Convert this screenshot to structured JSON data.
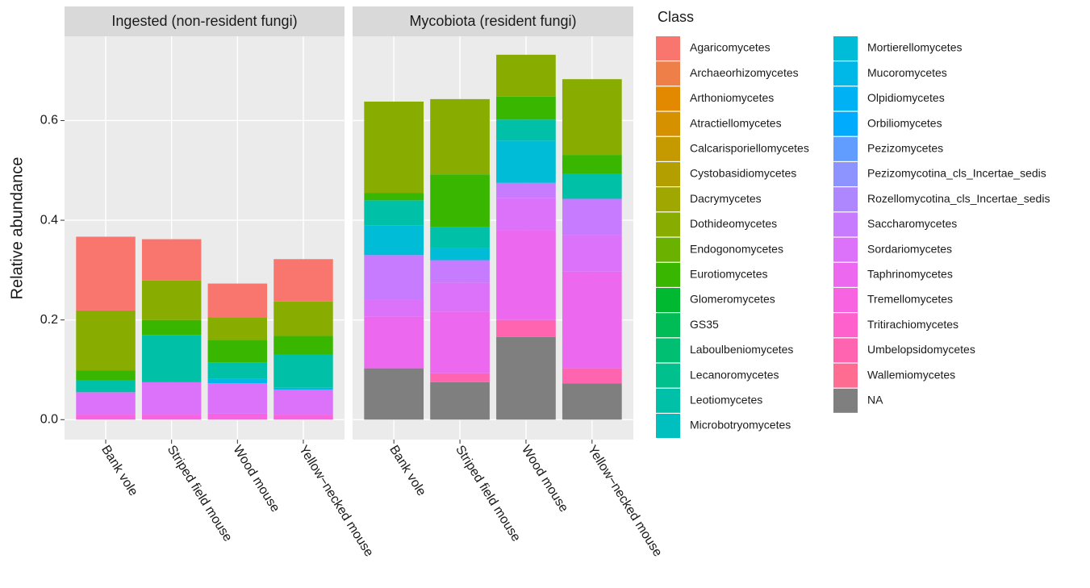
{
  "chart_data": {
    "type": "bar",
    "stacked": true,
    "ylabel": "Relative abundance",
    "legend_title": "Class",
    "facets": [
      "Ingested (non-resident fungi)",
      "Mycobiota (resident fungi)"
    ],
    "categories": [
      "Bank vole",
      "Striped field mouse",
      "Wood mouse",
      "Yellow−necked mouse"
    ],
    "ylim": [
      -0.04,
      0.769
    ],
    "yticks": [
      {
        "value": 0,
        "label": "0.0"
      },
      0.2,
      0.4,
      0.6
    ],
    "grid": true,
    "series": [
      {
        "name": "Agaricomycetes",
        "color": "#F8766D",
        "values": [
          [
            0.148,
            0.083,
            0.068,
            0.085
          ],
          [
            0,
            0,
            0,
            0
          ]
        ]
      },
      {
        "name": "Archaeorhizomycetes",
        "color": "#EF7F49",
        "values": [
          [
            0,
            0,
            0,
            0
          ],
          [
            0,
            0,
            0,
            0
          ]
        ]
      },
      {
        "name": "Arthoniomycetes",
        "color": "#E38900",
        "values": [
          [
            0,
            0,
            0,
            0
          ],
          [
            0,
            0,
            0,
            0
          ]
        ]
      },
      {
        "name": "Atractiellomycetes",
        "color": "#D69100",
        "values": [
          [
            0,
            0,
            0,
            0
          ],
          [
            0,
            0,
            0,
            0
          ]
        ]
      },
      {
        "name": "Calcarisporiellomycetes",
        "color": "#C59900",
        "values": [
          [
            0,
            0,
            0,
            0
          ],
          [
            0,
            0,
            0,
            0
          ]
        ]
      },
      {
        "name": "Cystobasidiomycetes",
        "color": "#B3A000",
        "values": [
          [
            0,
            0,
            0,
            0
          ],
          [
            0,
            0,
            0,
            0
          ]
        ]
      },
      {
        "name": "Dacrymycetes",
        "color": "#9FA700",
        "values": [
          [
            0,
            0,
            0,
            0
          ],
          [
            0,
            0,
            0,
            0
          ]
        ]
      },
      {
        "name": "Dothideomycetes",
        "color": "#88AC00",
        "values": [
          [
            0.12,
            0.079,
            0.045,
            0.069
          ],
          [
            0.183,
            0.151,
            0.084,
            0.152
          ]
        ]
      },
      {
        "name": "Endogonomycetes",
        "color": "#6BB100",
        "values": [
          [
            0,
            0,
            0,
            0
          ],
          [
            0,
            0,
            0,
            0
          ]
        ]
      },
      {
        "name": "Eurotiomycetes",
        "color": "#39B600",
        "values": [
          [
            0.02,
            0.03,
            0.045,
            0.038
          ],
          [
            0.015,
            0.105,
            0.046,
            0.038
          ]
        ]
      },
      {
        "name": "Glomeromycetes",
        "color": "#00B930",
        "values": [
          [
            0,
            0,
            0,
            0
          ],
          [
            0,
            0,
            0,
            0
          ]
        ]
      },
      {
        "name": "GS35",
        "color": "#00BC56",
        "values": [
          [
            0,
            0,
            0,
            0
          ],
          [
            0,
            0,
            0,
            0
          ]
        ]
      },
      {
        "name": "Laboulbeniomycetes",
        "color": "#00BE72",
        "values": [
          [
            0,
            0,
            0,
            0
          ],
          [
            0,
            0,
            0,
            0
          ]
        ]
      },
      {
        "name": "Lecanoromycetes",
        "color": "#00C08D",
        "values": [
          [
            0,
            0,
            0,
            0
          ],
          [
            0,
            0,
            0,
            0
          ]
        ]
      },
      {
        "name": "Leotiomycetes",
        "color": "#00C1A7",
        "values": [
          [
            0.024,
            0.095,
            0.033,
            0.066
          ],
          [
            0.05,
            0.042,
            0.042,
            0.05
          ]
        ]
      },
      {
        "name": "Microbotryomycetes",
        "color": "#00BFBF",
        "values": [
          [
            0,
            0,
            0,
            0
          ],
          [
            0,
            0,
            0,
            0
          ]
        ]
      },
      {
        "name": "Mortierellomycetes",
        "color": "#00BCD6",
        "values": [
          [
            0,
            0,
            0,
            0
          ],
          [
            0.06,
            0.025,
            0.085,
            0
          ]
        ]
      },
      {
        "name": "Mucoromycetes",
        "color": "#00B8E7",
        "values": [
          [
            0,
            0,
            0.009,
            0.004
          ],
          [
            0,
            0,
            0,
            0
          ]
        ]
      },
      {
        "name": "Olpidiomycetes",
        "color": "#00B2F4",
        "values": [
          [
            0,
            0,
            0,
            0
          ],
          [
            0,
            0,
            0,
            0
          ]
        ]
      },
      {
        "name": "Orbiliomycetes",
        "color": "#00AAFD",
        "values": [
          [
            0,
            0,
            0,
            0
          ],
          [
            0,
            0,
            0,
            0
          ]
        ]
      },
      {
        "name": "Pezizomycetes",
        "color": "#619CFF",
        "values": [
          [
            0,
            0,
            0,
            0
          ],
          [
            0,
            0,
            0,
            0
          ]
        ]
      },
      {
        "name": "Pezizomycotina_cls_Incertae_sedis",
        "color": "#8D93FF",
        "values": [
          [
            0,
            0,
            0,
            0
          ],
          [
            0,
            0,
            0,
            0
          ]
        ]
      },
      {
        "name": "Rozellomycotina_cls_Incertae_sedis",
        "color": "#AE87FF",
        "values": [
          [
            0,
            0,
            0,
            0
          ],
          [
            0,
            0,
            0,
            0
          ]
        ]
      },
      {
        "name": "Saccharomycetes",
        "color": "#C77CFF",
        "values": [
          [
            0,
            0,
            0,
            0
          ],
          [
            0.09,
            0.045,
            0.03,
            0.073
          ]
        ]
      },
      {
        "name": "Sordariomycetes",
        "color": "#DC71FA",
        "values": [
          [
            0.045,
            0.065,
            0.061,
            0.05
          ],
          [
            0.033,
            0.058,
            0.065,
            0.073
          ]
        ]
      },
      {
        "name": "Taphrinomycetes",
        "color": "#EC69EF",
        "values": [
          [
            0,
            0,
            0,
            0
          ],
          [
            0.104,
            0.124,
            0.18,
            0.194
          ]
        ]
      },
      {
        "name": "Tremellomycetes",
        "color": "#F763E0",
        "values": [
          [
            0.01,
            0.01,
            0.012,
            0.01
          ],
          [
            0,
            0,
            0,
            0
          ]
        ]
      },
      {
        "name": "Tritirachiomycetes",
        "color": "#FF61CC",
        "values": [
          [
            0,
            0,
            0,
            0
          ],
          [
            0,
            0,
            0,
            0
          ]
        ]
      },
      {
        "name": "Umbelopsidomycetes",
        "color": "#FF64B0",
        "values": [
          [
            0,
            0,
            0,
            0
          ],
          [
            0,
            0.018,
            0.034,
            0.03
          ]
        ]
      },
      {
        "name": "Wallemiomycetes",
        "color": "#FF6C91",
        "values": [
          [
            0,
            0,
            0,
            0
          ],
          [
            0,
            0,
            0,
            0
          ]
        ]
      },
      {
        "name": "NA",
        "color": "#7F7F7F",
        "values": [
          [
            0,
            0,
            0,
            0
          ],
          [
            0.103,
            0.075,
            0.166,
            0.073
          ]
        ]
      }
    ]
  }
}
